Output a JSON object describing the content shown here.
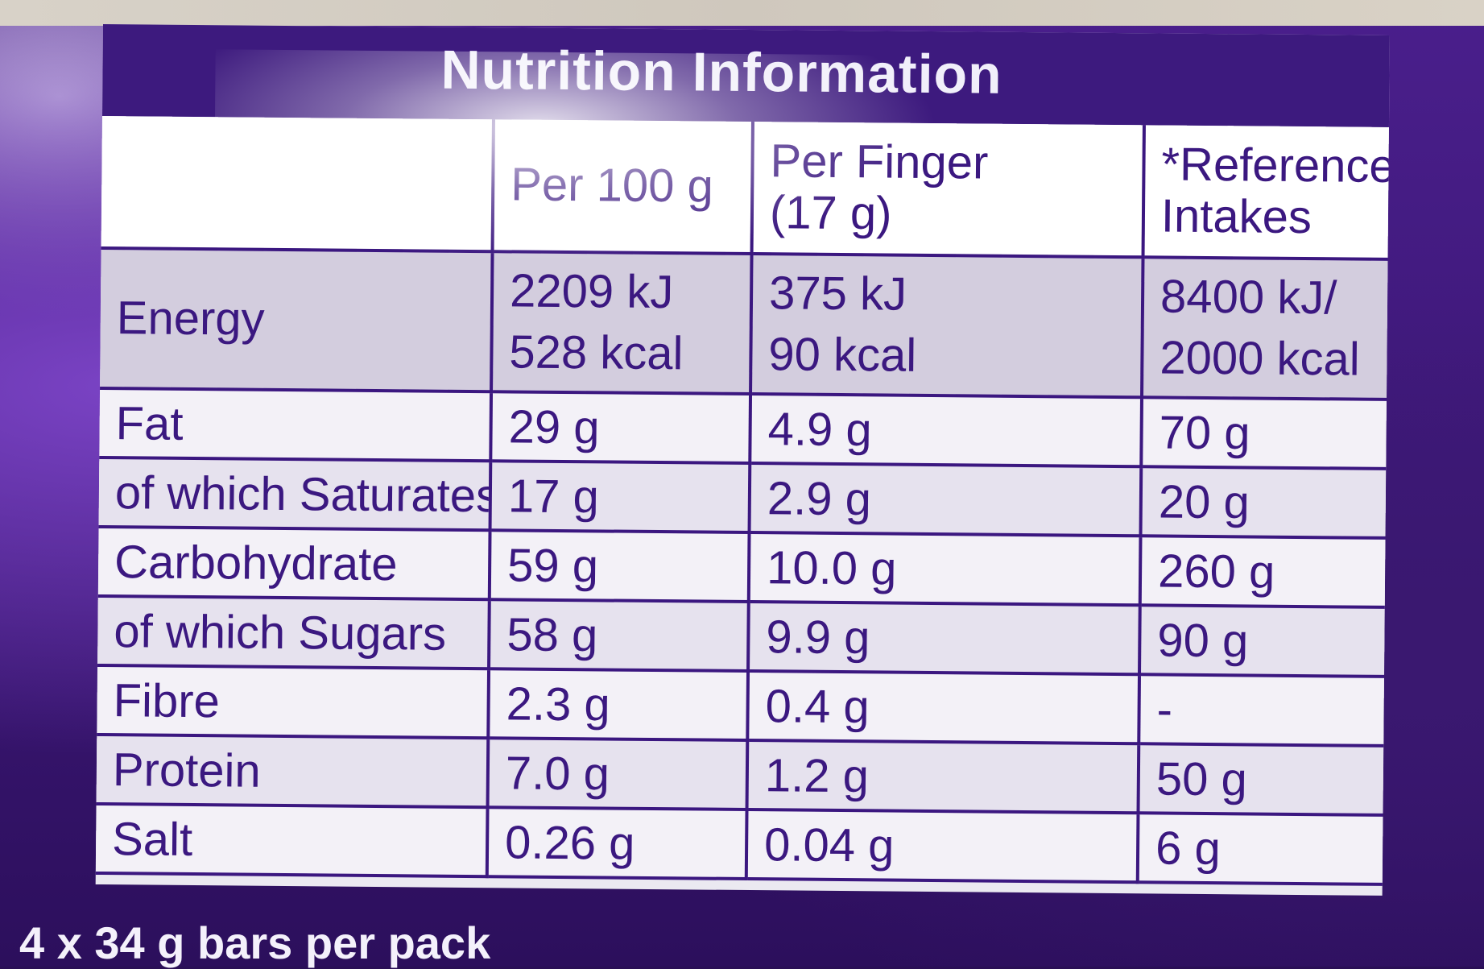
{
  "title": "Nutrition Information",
  "columns": [
    "",
    "Per 100 g",
    "Per Finger (17 g)",
    "*Reference Intakes"
  ],
  "header": {
    "per100": "Per 100 g",
    "perFinger": [
      "Per Finger",
      "(17 g)"
    ],
    "reference": [
      "*Reference",
      "Intakes"
    ]
  },
  "rows": [
    {
      "name": "Energy",
      "per100": [
        "2209 kJ",
        "528 kcal"
      ],
      "perFinger": [
        "375 kJ",
        "90 kcal"
      ],
      "reference": [
        "8400 kJ/",
        "2000 kcal"
      ]
    },
    {
      "name": "Fat",
      "per100": "29 g",
      "perFinger": "4.9 g",
      "reference": "70 g"
    },
    {
      "name": "of which Saturates",
      "per100": "17 g",
      "perFinger": "2.9 g",
      "reference": "20 g"
    },
    {
      "name": "Carbohydrate",
      "per100": "59 g",
      "perFinger": "10.0 g",
      "reference": "260 g"
    },
    {
      "name": "of which Sugars",
      "per100": "58 g",
      "perFinger": "9.9 g",
      "reference": "90 g"
    },
    {
      "name": "Fibre",
      "per100": "2.3 g",
      "perFinger": "0.4 g",
      "reference": "-"
    },
    {
      "name": "Protein",
      "per100": "7.0 g",
      "perFinger": "1.2 g",
      "reference": "50 g"
    },
    {
      "name": "Salt",
      "per100": "0.26 g",
      "perFinger": "0.04 g",
      "reference": "6 g"
    }
  ],
  "footer": "4 x 34 g bars per pack",
  "colors": {
    "label_purple": "#3d1a7e",
    "text_purple": "#3b1880",
    "wrapper_purple": "#4a1f8c"
  }
}
